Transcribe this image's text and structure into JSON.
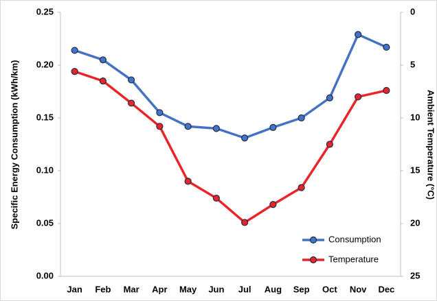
{
  "chart_data": {
    "type": "line",
    "y_label": "Specific Energy Consumption (kWh/km)",
    "y2_label": "Ambient Temperature (°C)",
    "categories": [
      "Jan",
      "Feb",
      "Mar",
      "Apr",
      "May",
      "Jun",
      "Jul",
      "Aug",
      "Sep",
      "Oct",
      "Nov",
      "Dec"
    ],
    "series": [
      {
        "name": "Consumption",
        "color": "#4472c4",
        "values": [
          0.214,
          0.205,
          0.186,
          0.155,
          0.142,
          0.14,
          0.131,
          0.141,
          0.15,
          0.169,
          0.229,
          0.217
        ]
      },
      {
        "name": "Temperature",
        "color": "#e8262a",
        "axis": "y2",
        "values": [
          5.6,
          6.5,
          8.6,
          10.8,
          16.0,
          17.6,
          19.9,
          18.2,
          16.6,
          12.5,
          8.0,
          7.4
        ]
      }
    ],
    "ylim": [
      0,
      0.25
    ],
    "yticks": [
      {
        "value": 0,
        "label": "0.00"
      },
      {
        "value": 0.05,
        "label": "0.05"
      },
      {
        "value": 0.1,
        "label": "0.10"
      },
      {
        "value": 0.15,
        "label": "0.15"
      },
      {
        "value": 0.2,
        "label": "0.20"
      },
      {
        "value": 0.25,
        "label": "0.25"
      }
    ],
    "y2lim": [
      25,
      0
    ],
    "y2ticks": [
      0,
      5,
      10,
      15,
      20,
      25
    ],
    "grid": false,
    "legend": "lower right"
  }
}
